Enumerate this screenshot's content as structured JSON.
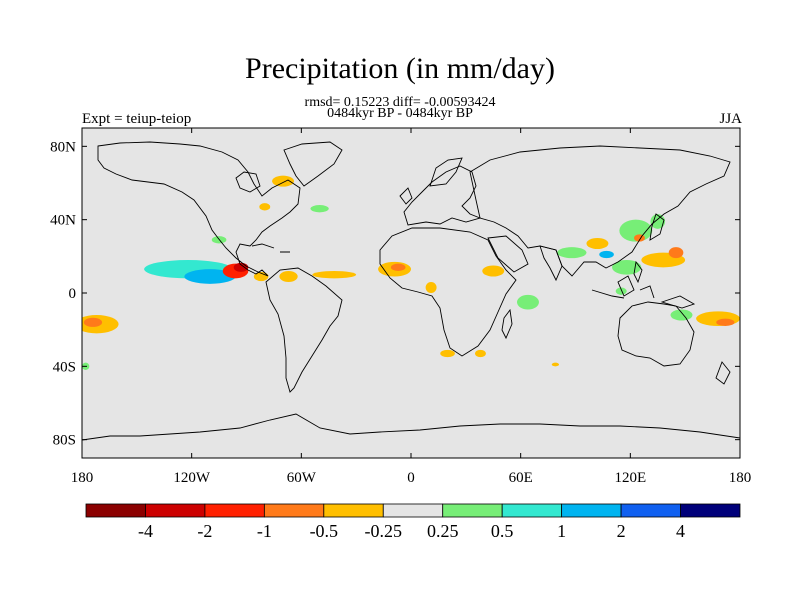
{
  "chart_data": {
    "type": "heatmap",
    "title": "Precipitation (in mm/day)",
    "stats": "rmsd= 0.15223  diff= -0.00593424",
    "subtitle": "0484kyr BP - 0484kyr BP",
    "left_label": "Expt = teiup-teiop",
    "right_label": "JJA",
    "xlim": [
      -180,
      180
    ],
    "ylim": [
      -90,
      90
    ],
    "x_ticks": [
      {
        "value": -180,
        "label": "180"
      },
      {
        "value": -120,
        "label": "120W"
      },
      {
        "value": -60,
        "label": "60W"
      },
      {
        "value": 0,
        "label": "0"
      },
      {
        "value": 60,
        "label": "60E"
      },
      {
        "value": 120,
        "label": "120E"
      },
      {
        "value": 180,
        "label": "180"
      }
    ],
    "y_ticks": [
      {
        "value": 80,
        "label": "80N"
      },
      {
        "value": 40,
        "label": "40N"
      },
      {
        "value": 0,
        "label": "0"
      },
      {
        "value": -40,
        "label": "40S"
      },
      {
        "value": -80,
        "label": "80S"
      }
    ],
    "colorbar": {
      "colors": [
        "#8b0000",
        "#cc0000",
        "#ff2000",
        "#ff7a1a",
        "#ffbf00",
        "#e5e5e5",
        "#77ee77",
        "#33e8d0",
        "#00b4f0",
        "#1060f0",
        "#00007a"
      ],
      "labels": [
        "-4",
        "-2",
        "-1",
        "-0.5",
        "-0.25",
        "0.25",
        "0.5",
        "1",
        "2",
        "4"
      ]
    },
    "anomalies": [
      {
        "lon": -122,
        "lat": 13,
        "rx": 24,
        "ry": 5,
        "value": 0.6
      },
      {
        "lon": -110,
        "lat": 9,
        "rx": 14,
        "ry": 4,
        "value": 1.2
      },
      {
        "lon": -96,
        "lat": 12,
        "rx": 7,
        "ry": 4,
        "value": -1.5
      },
      {
        "lon": -93,
        "lat": 14,
        "rx": 4,
        "ry": 2.5,
        "value": -3
      },
      {
        "lon": -82,
        "lat": 9,
        "rx": 4,
        "ry": 2.5,
        "value": -0.35
      },
      {
        "lon": -67,
        "lat": 9,
        "rx": 5,
        "ry": 3,
        "value": -0.35
      },
      {
        "lon": -42,
        "lat": 10,
        "rx": 12,
        "ry": 2,
        "value": -0.35
      },
      {
        "lon": -105,
        "lat": 29,
        "rx": 4,
        "ry": 2,
        "value": 0.3
      },
      {
        "lon": -70,
        "lat": 61,
        "rx": 6,
        "ry": 3,
        "value": -0.35
      },
      {
        "lon": -80,
        "lat": 47,
        "rx": 3,
        "ry": 2,
        "value": -0.35
      },
      {
        "lon": -50,
        "lat": 46,
        "rx": 5,
        "ry": 2,
        "value": 0.3
      },
      {
        "lon": -9,
        "lat": 13,
        "rx": 9,
        "ry": 4,
        "value": -0.35
      },
      {
        "lon": -7,
        "lat": 14,
        "rx": 4,
        "ry": 2,
        "value": -0.6
      },
      {
        "lon": 11,
        "lat": 3,
        "rx": 3,
        "ry": 3,
        "value": -0.35
      },
      {
        "lon": 45,
        "lat": 12,
        "rx": 6,
        "ry": 3,
        "value": -0.35
      },
      {
        "lon": 64,
        "lat": -5,
        "rx": 6,
        "ry": 4,
        "value": 0.4
      },
      {
        "lon": 88,
        "lat": 22,
        "rx": 8,
        "ry": 3,
        "value": 0.3
      },
      {
        "lon": 102,
        "lat": 27,
        "rx": 6,
        "ry": 3,
        "value": -0.35
      },
      {
        "lon": 123,
        "lat": 34,
        "rx": 9,
        "ry": 6,
        "value": 0.4
      },
      {
        "lon": 125,
        "lat": 30,
        "rx": 3,
        "ry": 2,
        "value": -0.6
      },
      {
        "lon": 135,
        "lat": 39,
        "rx": 4,
        "ry": 4,
        "value": 0.35
      },
      {
        "lon": 118,
        "lat": 14,
        "rx": 8,
        "ry": 4,
        "value": 0.4
      },
      {
        "lon": 138,
        "lat": 18,
        "rx": 12,
        "ry": 4,
        "value": -0.35
      },
      {
        "lon": 145,
        "lat": 22,
        "rx": 4,
        "ry": 3,
        "value": -0.7
      },
      {
        "lon": 107,
        "lat": 21,
        "rx": 4,
        "ry": 2,
        "value": 1.2
      },
      {
        "lon": 115,
        "lat": 1,
        "rx": 3,
        "ry": 2,
        "value": 0.3
      },
      {
        "lon": 148,
        "lat": -12,
        "rx": 6,
        "ry": 3,
        "value": 0.4
      },
      {
        "lon": 168,
        "lat": -14,
        "rx": 12,
        "ry": 4,
        "value": -0.35
      },
      {
        "lon": 172,
        "lat": -16,
        "rx": 5,
        "ry": 2,
        "value": -0.6
      },
      {
        "lon": -172,
        "lat": -17,
        "rx": 12,
        "ry": 5,
        "value": -0.35
      },
      {
        "lon": -174,
        "lat": -16,
        "rx": 5,
        "ry": 2.5,
        "value": -0.6
      },
      {
        "lon": -178,
        "lat": -40,
        "rx": 2,
        "ry": 2,
        "value": 0.3
      },
      {
        "lon": 20,
        "lat": -33,
        "rx": 4,
        "ry": 2,
        "value": -0.35
      },
      {
        "lon": 38,
        "lat": -33,
        "rx": 3,
        "ry": 2,
        "value": -0.35
      },
      {
        "lon": 79,
        "lat": -39,
        "rx": 2,
        "ry": 1,
        "value": -0.35
      }
    ]
  }
}
